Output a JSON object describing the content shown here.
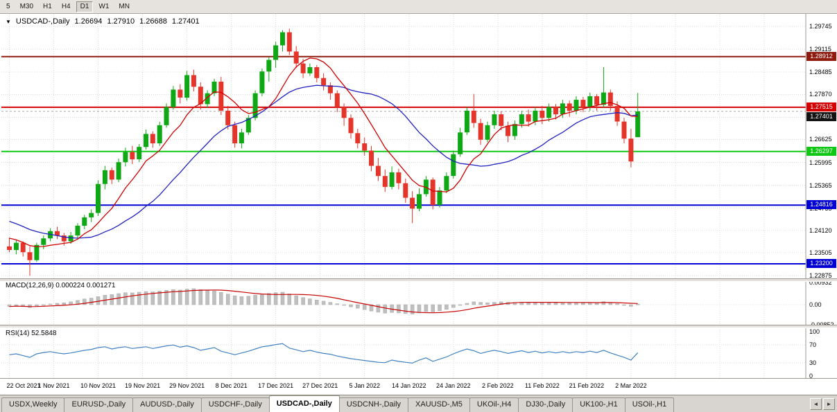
{
  "toolbar": {
    "timeframes": [
      "5",
      "M30",
      "H1",
      "H4",
      "D1",
      "W1",
      "MN"
    ],
    "active": "D1"
  },
  "header": {
    "dropdown_icon": "▼",
    "symbol": "USDCAD-,Daily",
    "open": "1.26694",
    "high": "1.27910",
    "low": "1.26688",
    "close": "1.27401"
  },
  "price_axis": {
    "top_price": 1.29745,
    "bottom_price": 1.22875,
    "labels": [
      "1.29745",
      "1.29115",
      "1.28485",
      "1.27870",
      "1.27240",
      "1.26625",
      "1.25995",
      "1.25365",
      "1.24735",
      "1.24120",
      "1.23505",
      "1.22875"
    ]
  },
  "hlines": [
    {
      "price": 1.28912,
      "label": "1.28912",
      "color": "#8f1a0e"
    },
    {
      "price": 1.27515,
      "label": "1.27515",
      "color": "#d40000"
    },
    {
      "price": 1.26297,
      "label": "1.26297",
      "color": "#0fc814"
    },
    {
      "price": 1.24816,
      "label": "1.24816",
      "color": "#0000d4"
    },
    {
      "price": 1.232,
      "label": "1.23200",
      "color": "#0000d4"
    }
  ],
  "current_price": {
    "price": 1.27401,
    "label": "1.27401",
    "color": "#141414"
  },
  "macd_panel": {
    "label": "MACD(12,26,9) 0.000224 0.001271",
    "axis": [
      "0.00932",
      "0.00",
      "-0.00852"
    ],
    "axis_values": [
      0.00932,
      0,
      -0.00852
    ]
  },
  "rsi_panel": {
    "label": "RSI(14) 52.5848",
    "axis": [
      "100",
      "70",
      "30",
      "0"
    ],
    "axis_values": [
      100,
      70,
      30,
      0
    ],
    "levels": [
      70,
      30
    ]
  },
  "date_axis": {
    "labels": [
      "22 Oct 2021",
      "1 Nov 2021",
      "10 Nov 2021",
      "19 Nov 2021",
      "29 Nov 2021",
      "8 Dec 2021",
      "17 Dec 2021",
      "27 Dec 2021",
      "5 Jan 2022",
      "14 Jan 2022",
      "24 Jan 2022",
      "2 Feb 2022",
      "11 Feb 2022",
      "21 Feb 2022",
      "2 Mar 2022"
    ]
  },
  "tabs": {
    "items": [
      "USDX,Weekly",
      "EURUSD-,Daily",
      "AUDUSD-,Daily",
      "USDCHF-,Daily",
      "USDCAD-,Daily",
      "USDCNH-,Daily",
      "XAUUSD-,M5",
      "UKOil-,H4",
      "DJ30-,Daily",
      "UK100-,H1",
      "USOil-,H1"
    ],
    "active": "USDCAD-,Daily",
    "scroll_left": "◄",
    "scroll_right": "►"
  },
  "colors": {
    "bull": "#0da813",
    "bear": "#e5352a",
    "ma_fast": "#d00000",
    "ma_slow": "#2020c0",
    "macd_hist": "#bfbfbf",
    "macd_hist_border": "#a8a8a8",
    "macd_signal": "#c80000",
    "rsi_line": "#4080c0",
    "grid": "#dcdcdc",
    "axis_border": "#9b988f"
  },
  "chart_data": {
    "type": "candlestick",
    "symbol": "USDCAD",
    "timeframe": "Daily",
    "title": "USDCAD-,Daily",
    "x_range": [
      "22 Oct 2021",
      "2 Mar 2022"
    ],
    "price_range": [
      1.22875,
      1.29745
    ],
    "last_bar": {
      "open": 1.26694,
      "high": 1.2791,
      "low": 1.26688,
      "close": 1.27401
    },
    "indicators": [
      {
        "name": "MACD",
        "params": "12,26,9",
        "value": 0.000224,
        "signal": 0.001271,
        "axis_range": [
          -0.00852,
          0.00932
        ]
      },
      {
        "name": "RSI",
        "params": "14",
        "value": 52.5848,
        "axis_range": [
          0,
          100
        ],
        "levels": [
          30,
          70
        ]
      }
    ],
    "horizontal_levels": [
      1.28912,
      1.27515,
      1.26297,
      1.24816,
      1.232
    ],
    "candles": [
      [
        1.2368,
        1.2392,
        1.2352,
        1.2358
      ],
      [
        1.2358,
        1.2385,
        1.2346,
        1.2378
      ],
      [
        1.2378,
        1.2382,
        1.234,
        1.2352
      ],
      [
        1.2352,
        1.2368,
        1.2287,
        1.233
      ],
      [
        1.233,
        1.2378,
        1.2325,
        1.2372
      ],
      [
        1.2372,
        1.2398,
        1.236,
        1.239
      ],
      [
        1.239,
        1.2418,
        1.2382,
        1.241
      ],
      [
        1.241,
        1.2422,
        1.2388,
        1.2398
      ],
      [
        1.2398,
        1.2405,
        1.237,
        1.2382
      ],
      [
        1.2382,
        1.2408,
        1.2375,
        1.2398
      ],
      [
        1.2398,
        1.2432,
        1.239,
        1.2425
      ],
      [
        1.2425,
        1.2455,
        1.2415,
        1.2448
      ],
      [
        1.2448,
        1.247,
        1.2435,
        1.246
      ],
      [
        1.246,
        1.255,
        1.2452,
        1.254
      ],
      [
        1.254,
        1.259,
        1.2525,
        1.2578
      ],
      [
        1.2578,
        1.2585,
        1.254,
        1.2552
      ],
      [
        1.2552,
        1.261,
        1.2545,
        1.26
      ],
      [
        1.26,
        1.264,
        1.2588,
        1.2628
      ],
      [
        1.2628,
        1.2645,
        1.2595,
        1.2608
      ],
      [
        1.2608,
        1.265,
        1.26,
        1.2642
      ],
      [
        1.2642,
        1.269,
        1.2635,
        1.2678
      ],
      [
        1.2678,
        1.2685,
        1.264,
        1.2652
      ],
      [
        1.2652,
        1.2712,
        1.2645,
        1.2702
      ],
      [
        1.2702,
        1.2762,
        1.2695,
        1.2752
      ],
      [
        1.2752,
        1.281,
        1.2745,
        1.28
      ],
      [
        1.28,
        1.2815,
        1.2762,
        1.2778
      ],
      [
        1.2778,
        1.2852,
        1.277,
        1.284
      ],
      [
        1.284,
        1.2855,
        1.2795,
        1.2808
      ],
      [
        1.2808,
        1.282,
        1.2745,
        1.276
      ],
      [
        1.276,
        1.2798,
        1.275,
        1.279
      ],
      [
        1.279,
        1.283,
        1.2782,
        1.2822
      ],
      [
        1.2822,
        1.2835,
        1.273,
        1.2742
      ],
      [
        1.2742,
        1.2755,
        1.269,
        1.2702
      ],
      [
        1.2702,
        1.2712,
        1.264,
        1.2652
      ],
      [
        1.2652,
        1.2692,
        1.2638,
        1.2682
      ],
      [
        1.2682,
        1.273,
        1.2675,
        1.2722
      ],
      [
        1.2722,
        1.2798,
        1.2715,
        1.279
      ],
      [
        1.279,
        1.2858,
        1.2782,
        1.285
      ],
      [
        1.285,
        1.289,
        1.2822,
        1.2882
      ],
      [
        1.2882,
        1.2932,
        1.286,
        1.2922
      ],
      [
        1.2922,
        1.2964,
        1.2905,
        1.2958
      ],
      [
        1.2958,
        1.2968,
        1.2895,
        1.2905
      ],
      [
        1.2905,
        1.292,
        1.286,
        1.2872
      ],
      [
        1.2872,
        1.2885,
        1.2832,
        1.2845
      ],
      [
        1.2845,
        1.2872,
        1.2838,
        1.2862
      ],
      [
        1.2862,
        1.2868,
        1.282,
        1.2832
      ],
      [
        1.2832,
        1.2845,
        1.2798,
        1.2812
      ],
      [
        1.2812,
        1.282,
        1.2772,
        1.279
      ],
      [
        1.279,
        1.2798,
        1.2738,
        1.2752
      ],
      [
        1.2752,
        1.2762,
        1.27,
        1.2722
      ],
      [
        1.2722,
        1.2732,
        1.2665,
        1.268
      ],
      [
        1.268,
        1.2692,
        1.2638,
        1.2652
      ],
      [
        1.2652,
        1.2668,
        1.2618,
        1.2632
      ],
      [
        1.2632,
        1.2645,
        1.2575,
        1.259
      ],
      [
        1.259,
        1.2612,
        1.2548,
        1.2562
      ],
      [
        1.2562,
        1.258,
        1.2518,
        1.2532
      ],
      [
        1.2532,
        1.2588,
        1.2525,
        1.2572
      ],
      [
        1.2572,
        1.2582,
        1.2525,
        1.2542
      ],
      [
        1.2542,
        1.2555,
        1.2488,
        1.2502
      ],
      [
        1.2502,
        1.252,
        1.2432,
        1.2472
      ],
      [
        1.2472,
        1.2528,
        1.2465,
        1.2512
      ],
      [
        1.2512,
        1.2562,
        1.2505,
        1.2552
      ],
      [
        1.2552,
        1.2558,
        1.247,
        1.2482
      ],
      [
        1.2482,
        1.2532,
        1.2475,
        1.2522
      ],
      [
        1.2522,
        1.2572,
        1.2515,
        1.2562
      ],
      [
        1.2562,
        1.2632,
        1.2555,
        1.2622
      ],
      [
        1.2622,
        1.2695,
        1.2615,
        1.2682
      ],
      [
        1.2682,
        1.2752,
        1.2675,
        1.2742
      ],
      [
        1.2742,
        1.2788,
        1.2695,
        1.2708
      ],
      [
        1.2708,
        1.272,
        1.2648,
        1.2662
      ],
      [
        1.2662,
        1.2712,
        1.2655,
        1.2702
      ],
      [
        1.2702,
        1.2742,
        1.2692,
        1.2732
      ],
      [
        1.2732,
        1.274,
        1.2688,
        1.27
      ],
      [
        1.27,
        1.2712,
        1.2655,
        1.2672
      ],
      [
        1.2672,
        1.2715,
        1.2662,
        1.2705
      ],
      [
        1.2705,
        1.2742,
        1.2695,
        1.2732
      ],
      [
        1.2732,
        1.2745,
        1.2698,
        1.2712
      ],
      [
        1.2712,
        1.2752,
        1.2702,
        1.2742
      ],
      [
        1.2742,
        1.2755,
        1.2705,
        1.2722
      ],
      [
        1.2722,
        1.2762,
        1.2712,
        1.2752
      ],
      [
        1.2752,
        1.276,
        1.2718,
        1.2732
      ],
      [
        1.2732,
        1.2772,
        1.2722,
        1.2762
      ],
      [
        1.2762,
        1.277,
        1.2725,
        1.2742
      ],
      [
        1.2742,
        1.2782,
        1.2732,
        1.2772
      ],
      [
        1.2772,
        1.278,
        1.2738,
        1.2752
      ],
      [
        1.2752,
        1.2792,
        1.2742,
        1.2782
      ],
      [
        1.2782,
        1.2788,
        1.2742,
        1.2758
      ],
      [
        1.2758,
        1.2862,
        1.275,
        1.2792
      ],
      [
        1.2792,
        1.28,
        1.2742,
        1.2755
      ],
      [
        1.2755,
        1.2768,
        1.27,
        1.2712
      ],
      [
        1.2712,
        1.2722,
        1.2652,
        1.2665
      ],
      [
        1.2665,
        1.2692,
        1.2586,
        1.2602
      ],
      [
        1.2669,
        1.2791,
        1.2669,
        1.274
      ]
    ],
    "ma_seed": [
      1.252,
      1.2512,
      1.2504,
      1.2496,
      1.2488,
      1.248,
      1.2472,
      1.2464,
      1.2456,
      1.2448,
      1.244,
      1.2432,
      1.2424,
      1.2416,
      1.2408,
      1.24,
      1.2394,
      1.2388,
      1.2383,
      1.2378
    ],
    "macd_hist": [
      -0.0008,
      -0.0005,
      -0.0008,
      -0.0012,
      -0.0006,
      -0.0002,
      0.0003,
      0.0006,
      0.0008,
      0.0012,
      0.0018,
      0.0024,
      0.0028,
      0.0034,
      0.004,
      0.0043,
      0.0047,
      0.0051,
      0.005,
      0.0053,
      0.0056,
      0.0054,
      0.0058,
      0.0061,
      0.0064,
      0.0062,
      0.0066,
      0.0068,
      0.0064,
      0.006,
      0.0058,
      0.0052,
      0.0045,
      0.0038,
      0.0034,
      0.0036,
      0.004,
      0.0045,
      0.0048,
      0.0051,
      0.0053,
      0.0046,
      0.0038,
      0.003,
      0.0025,
      0.002,
      0.0015,
      0.001,
      0.0004,
      -0.0002,
      -0.0009,
      -0.0015,
      -0.0021,
      -0.0027,
      -0.0032,
      -0.0036,
      -0.0033,
      -0.0035,
      -0.0038,
      -0.004,
      -0.0035,
      -0.0029,
      -0.0031,
      -0.0026,
      -0.002,
      -0.0012,
      -0.0003,
      0.0006,
      0.0012,
      0.001,
      0.0008,
      0.001,
      0.0012,
      0.001,
      0.0009,
      0.0011,
      0.0009,
      0.0011,
      0.0009,
      0.001,
      0.0008,
      0.0009,
      0.0008,
      0.0009,
      0.0008,
      0.0009,
      0.0008,
      0.0013,
      0.0009,
      0.0004,
      -0.0001,
      -0.0007,
      0.0002
    ],
    "rsi": [
      48,
      50,
      46,
      42,
      50,
      53,
      55,
      52,
      50,
      52,
      55,
      58,
      60,
      64,
      66,
      61,
      64,
      66,
      62,
      64,
      66,
      62,
      65,
      68,
      70,
      65,
      68,
      64,
      58,
      61,
      64,
      56,
      52,
      48,
      52,
      56,
      61,
      66,
      68,
      71,
      73,
      63,
      59,
      55,
      58,
      54,
      51,
      49,
      45,
      42,
      39,
      37,
      35,
      33,
      31,
      30,
      36,
      33,
      31,
      29,
      36,
      41,
      33,
      38,
      43,
      50,
      56,
      61,
      57,
      51,
      55,
      58,
      55,
      51,
      54,
      57,
      53,
      56,
      52,
      55,
      52,
      55,
      52,
      55,
      53,
      56,
      53,
      58,
      52,
      47,
      42,
      36,
      52.6
    ]
  }
}
